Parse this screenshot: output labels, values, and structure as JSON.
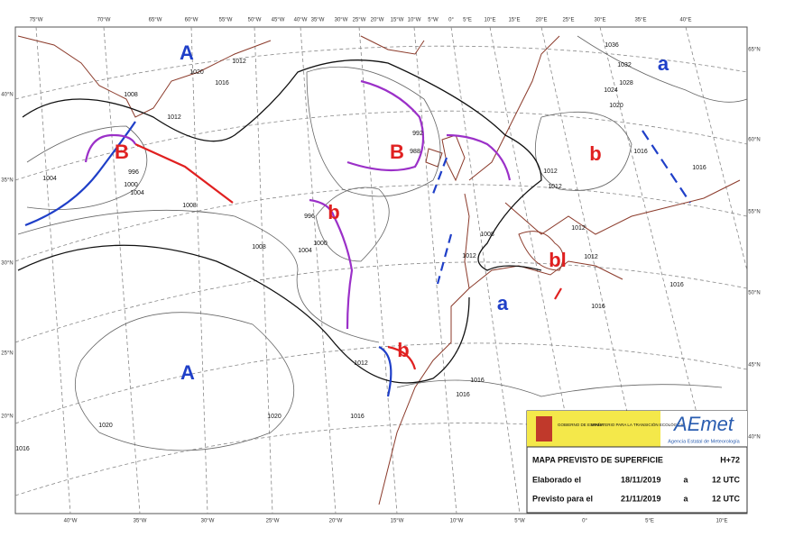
{
  "map": {
    "lon_top": [
      "75°W",
      "70°W",
      "65°W",
      "60°W",
      "55°W",
      "50°W",
      "45°W",
      "40°W",
      "35°W",
      "30°W",
      "25°W",
      "20°W",
      "15°W",
      "10°W",
      "5°W",
      "0°",
      "5°E",
      "10°E",
      "15°E",
      "20°E",
      "25°E",
      "30°E",
      "35°E",
      "40°E"
    ],
    "lon_bottom": [
      "40°W",
      "35°W",
      "30°W",
      "25°W",
      "20°W",
      "15°W",
      "10°W",
      "5°W",
      "0°",
      "5°E",
      "10°E"
    ],
    "lat_left": [
      "40°N",
      "35°N",
      "30°N",
      "25°N",
      "20°N"
    ],
    "lat_right": [
      "65°N",
      "60°N",
      "55°N",
      "50°N",
      "45°N",
      "40°N"
    ],
    "pressure_centers": [
      {
        "label": "A",
        "color": "#1f3fc8"
      },
      {
        "label": "a",
        "color": "#1f3fc8"
      },
      {
        "label": "B",
        "color": "#e02020"
      },
      {
        "label": "B",
        "color": "#e02020"
      },
      {
        "label": "b",
        "color": "#e02020"
      },
      {
        "label": "b",
        "color": "#e02020"
      },
      {
        "label": "bl",
        "color": "#e02020"
      },
      {
        "label": "a",
        "color": "#1f3fc8"
      },
      {
        "label": "b",
        "color": "#e02020"
      },
      {
        "label": "A",
        "color": "#1f3fc8"
      }
    ],
    "isobar_labels": [
      "1012",
      "1020",
      "1016",
      "1008",
      "1012",
      "1004",
      "996",
      "1000",
      "1004",
      "1008",
      "1008",
      "1004",
      "1000",
      "996",
      "992",
      "988",
      "1012",
      "1012",
      "1008",
      "1012",
      "1012",
      "1012",
      "1016",
      "1016",
      "1012",
      "1016",
      "1016",
      "1016",
      "1020",
      "1020",
      "1016",
      "1036",
      "1032",
      "1028",
      "1024",
      "1020",
      "1016",
      "1016"
    ]
  },
  "legend": {
    "gobierno": "GOBIERNO DE ESPAÑA",
    "ministerio": "MINISTERIO PARA LA TRANSICIÓN ECOLÓGICA",
    "logo": "AEmet",
    "agency": "Agencia Estatal de Meteorología",
    "title": "MAPA PREVISTO DE SUPERFICIE",
    "lead": "H+72",
    "rows": [
      [
        "Elaborado el",
        "18/11/2019",
        "a",
        "12 UTC"
      ],
      [
        "Previsto para el",
        "21/11/2019",
        "a",
        "12 UTC"
      ]
    ]
  }
}
